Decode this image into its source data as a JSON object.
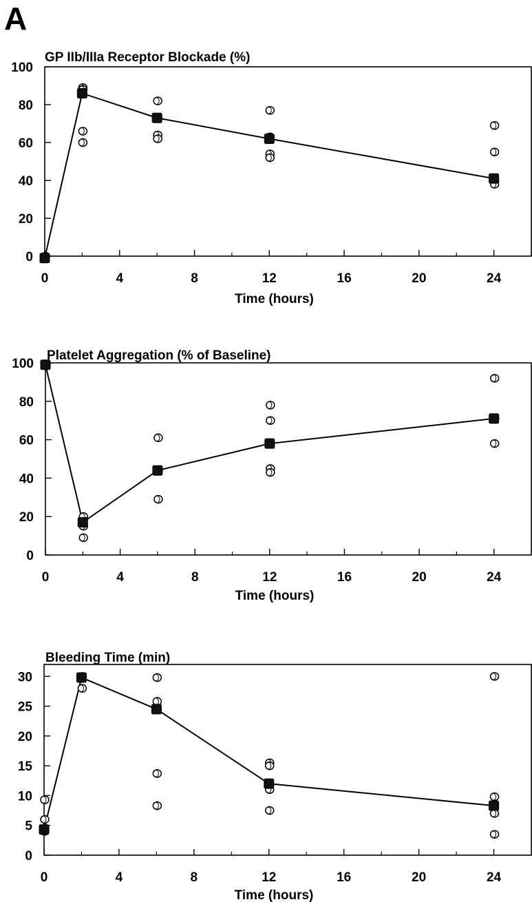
{
  "panel_label": "A",
  "chart_data": [
    {
      "type": "scatter",
      "title": "GP IIb/IIIa Receptor Blockade (%)",
      "xlabel": "Time (hours)",
      "ylabel": "",
      "xlim": [
        0,
        26
      ],
      "ylim": [
        0,
        100
      ],
      "xticks": [
        0,
        4,
        8,
        12,
        16,
        20,
        24
      ],
      "yticks": [
        0,
        20,
        40,
        60,
        80,
        100
      ],
      "grid": false,
      "series": [
        {
          "marker": "open-circle",
          "points": [
            [
              0,
              0
            ],
            [
              2,
              89
            ],
            [
              2,
              88
            ],
            [
              2,
              66
            ],
            [
              2,
              60
            ],
            [
              6,
              82
            ],
            [
              6,
              64
            ],
            [
              6,
              62
            ],
            [
              6,
              73
            ],
            [
              12,
              77
            ],
            [
              12,
              63
            ],
            [
              12,
              54
            ],
            [
              12,
              52
            ],
            [
              24,
              69
            ],
            [
              24,
              55
            ],
            [
              24,
              40
            ],
            [
              24,
              38
            ]
          ]
        },
        {
          "marker": "filled-square",
          "line": true,
          "points": [
            [
              0,
              -1
            ],
            [
              2,
              86
            ],
            [
              6,
              73
            ],
            [
              12,
              62
            ],
            [
              24,
              41
            ]
          ]
        }
      ]
    },
    {
      "type": "scatter",
      "title": "Platelet Aggregation (% of Baseline)",
      "xlabel": "Time (hours)",
      "ylabel": "",
      "xlim": [
        0,
        26
      ],
      "ylim": [
        0,
        100
      ],
      "xticks": [
        0,
        4,
        8,
        12,
        16,
        20,
        24
      ],
      "yticks": [
        0,
        20,
        40,
        60,
        80,
        100
      ],
      "grid": false,
      "series": [
        {
          "marker": "open-circle",
          "points": [
            [
              0,
              99
            ],
            [
              2,
              20
            ],
            [
              2,
              15
            ],
            [
              2,
              9
            ],
            [
              6,
              61
            ],
            [
              6,
              44
            ],
            [
              6,
              29
            ],
            [
              12,
              78
            ],
            [
              12,
              70
            ],
            [
              12,
              45
            ],
            [
              12,
              43
            ],
            [
              24,
              92
            ],
            [
              24,
              71
            ],
            [
              24,
              58
            ]
          ]
        },
        {
          "marker": "filled-square",
          "line": true,
          "points": [
            [
              0,
              99
            ],
            [
              2,
              17
            ],
            [
              6,
              44
            ],
            [
              12,
              58
            ],
            [
              24,
              71
            ]
          ]
        }
      ]
    },
    {
      "type": "scatter",
      "title": "Bleeding Time (min)",
      "xlabel": "Time (hours)",
      "ylabel": "",
      "xlim": [
        0,
        26
      ],
      "ylim": [
        0,
        32
      ],
      "xticks": [
        0,
        4,
        8,
        12,
        16,
        20,
        24
      ],
      "yticks": [
        0,
        5,
        10,
        15,
        20,
        25,
        30
      ],
      "grid": false,
      "series": [
        {
          "marker": "open-circle",
          "points": [
            [
              0,
              9.3
            ],
            [
              0,
              6
            ],
            [
              0,
              4.5
            ],
            [
              0,
              4
            ],
            [
              2,
              30
            ],
            [
              2,
              28
            ],
            [
              6,
              29.8
            ],
            [
              6,
              25.8
            ],
            [
              6,
              24.5
            ],
            [
              6,
              13.7
            ],
            [
              6,
              8.3
            ],
            [
              12,
              15.5
            ],
            [
              12,
              15
            ],
            [
              12,
              11
            ],
            [
              12,
              7.5
            ],
            [
              24,
              30
            ],
            [
              24,
              9.8
            ],
            [
              24,
              8
            ],
            [
              24,
              7
            ],
            [
              24,
              3.5
            ]
          ]
        },
        {
          "marker": "filled-square",
          "line": true,
          "points": [
            [
              0,
              4.3
            ],
            [
              2,
              29.8
            ],
            [
              6,
              24.5
            ],
            [
              12,
              12
            ],
            [
              24,
              8.3
            ]
          ]
        }
      ]
    }
  ]
}
